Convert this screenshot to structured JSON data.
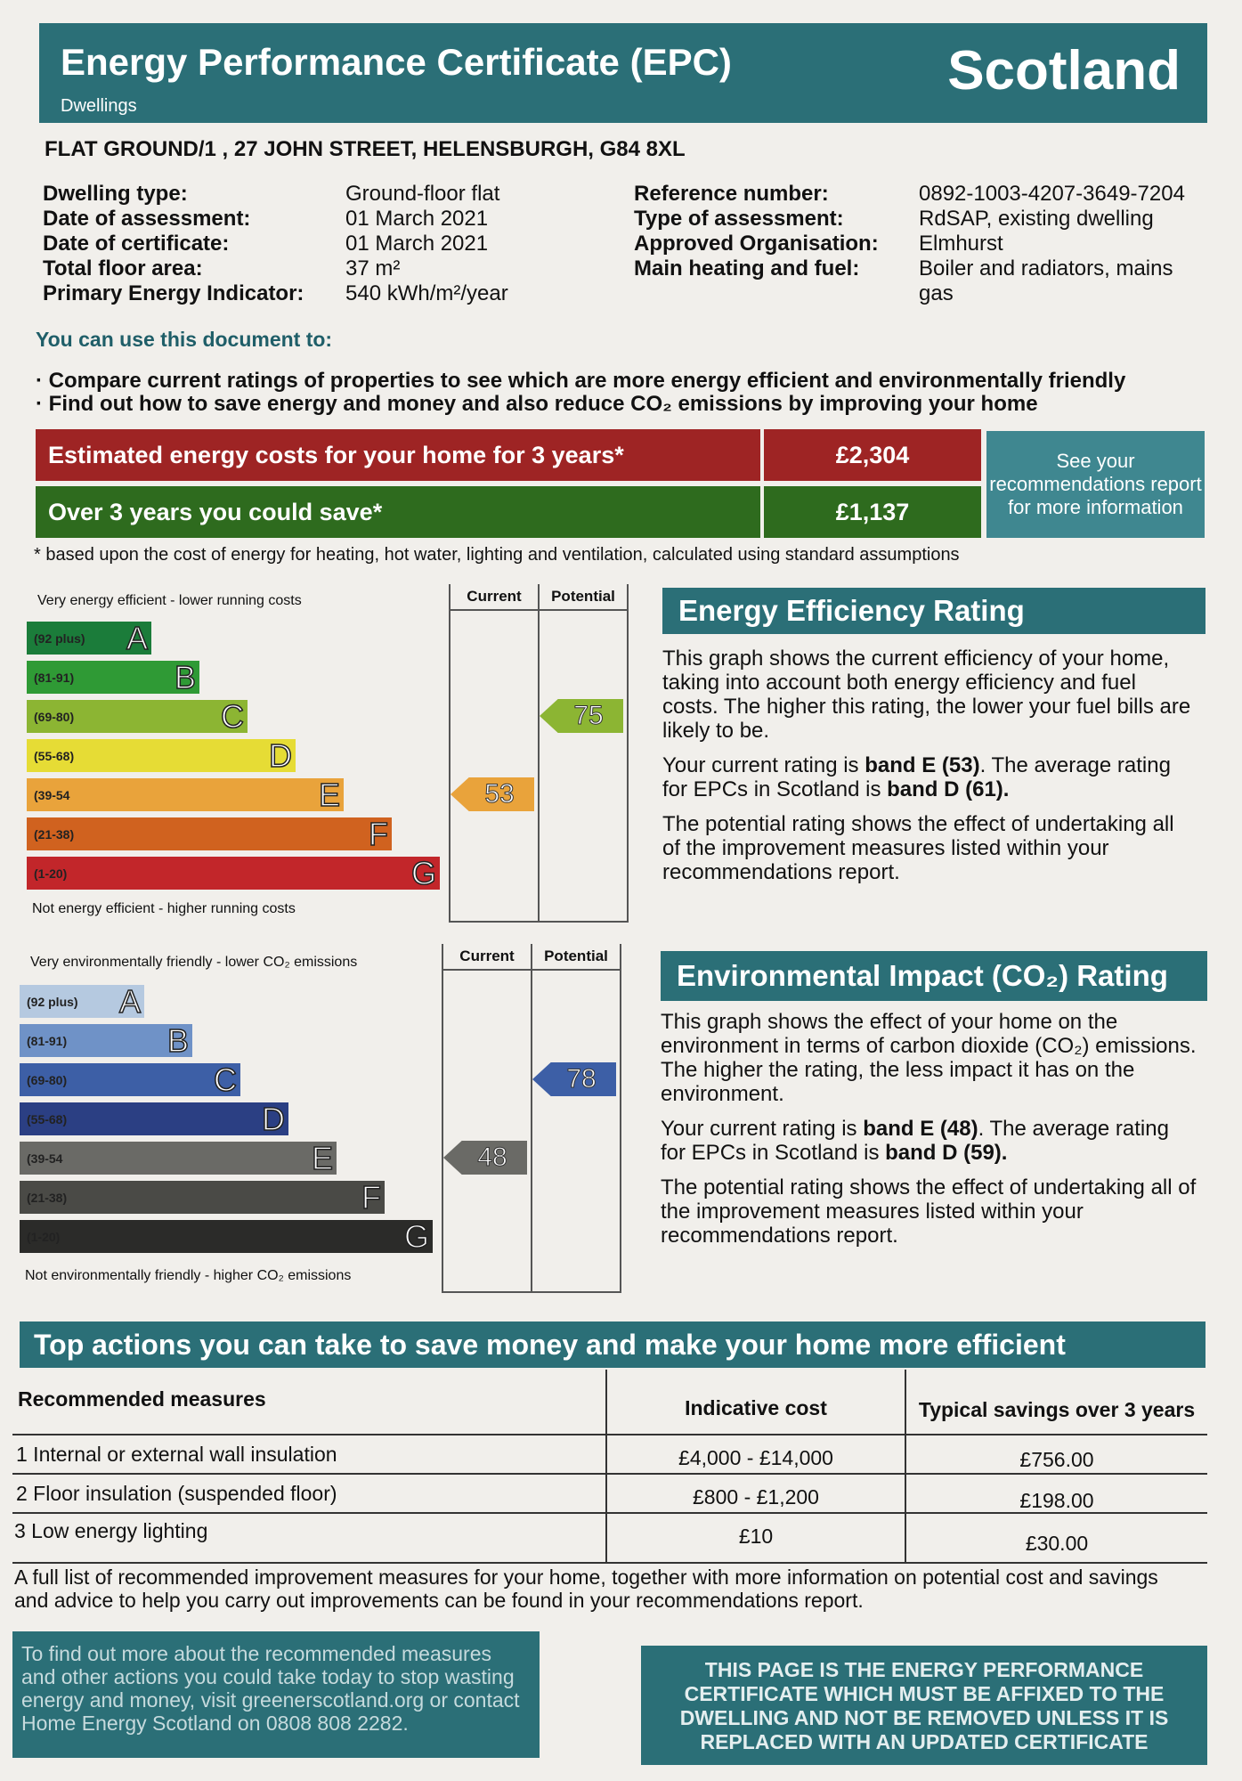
{
  "header": {
    "title": "Energy Performance Certificate (EPC)",
    "subtitle": "Dwellings",
    "country": "Scotland"
  },
  "address": "FLAT GROUND/1 , 27 JOHN STREET, HELENSBURGH, G84 8XL",
  "details_left": [
    {
      "label": "Dwelling type:",
      "value": "Ground-floor flat"
    },
    {
      "label": "Date of assessment:",
      "value": "01 March 2021"
    },
    {
      "label": "Date of certificate:",
      "value": "01 March 2021"
    },
    {
      "label": "Total floor area:",
      "value": "37 m²"
    },
    {
      "label": "Primary Energy Indicator:",
      "value": "540 kWh/m²/year"
    }
  ],
  "details_right": [
    {
      "label": "Reference number:",
      "value": "0892-1003-4207-3649-7204"
    },
    {
      "label": "Type of assessment:",
      "value": "RdSAP, existing dwelling"
    },
    {
      "label": "Approved Organisation:",
      "value": "Elmhurst"
    },
    {
      "label": "Main heating and fuel:",
      "value": "Boiler and radiators, mains",
      "value2": "gas"
    }
  ],
  "use_heading": "You can use this document to:",
  "bullets": [
    "Compare current ratings of properties to see which are more energy efficient and environmentally friendly",
    "Find out how to save energy and money and also reduce CO₂ emissions by improving your home"
  ],
  "costs": {
    "estimated_label": "Estimated energy costs for your home for 3 years*",
    "estimated_value": "£2,304",
    "save_label": "Over 3 years you could save*",
    "save_value": "£1,137",
    "see_box": "See your recommendations report for more information",
    "footnote": "* based upon the cost of energy for heating, hot water, lighting and ventilation, calculated using standard assumptions",
    "colors": {
      "red": "#9e2424",
      "green": "#2e6b1e",
      "teal": "#3f8790"
    }
  },
  "energy_chart": {
    "top_label": "Very energy efficient - lower running costs",
    "bottom_label": "Not energy efficient - higher running costs",
    "col_current": "Current",
    "col_potential": "Potential",
    "bands": [
      {
        "range": "(92 plus)",
        "letter": "A",
        "color": "#1b7c3a"
      },
      {
        "range": "(81-91)",
        "letter": "B",
        "color": "#2f9a35"
      },
      {
        "range": "(69-80)",
        "letter": "C",
        "color": "#8cb533"
      },
      {
        "range": "(55-68)",
        "letter": "D",
        "color": "#e6dc35"
      },
      {
        "range": "(39-54",
        "letter": "E",
        "color": "#e9a33b"
      },
      {
        "range": "(21-38)",
        "letter": "F",
        "color": "#d0621f"
      },
      {
        "range": "(1-20)",
        "letter": "G",
        "color": "#c2262a"
      }
    ],
    "current": "53",
    "potential": "75",
    "current_color": "#e9a33b",
    "potential_color": "#8cb533"
  },
  "env_chart": {
    "top_label": "Very environmentally friendly - lower CO₂ emissions",
    "bottom_label": "Not environmentally friendly - higher CO₂ emissions",
    "col_current": "Current",
    "col_potential": "Potential",
    "bands": [
      {
        "range": "(92 plus)",
        "letter": "A",
        "color": "#b5c9e0"
      },
      {
        "range": "(81-91)",
        "letter": "B",
        "color": "#6f92c7"
      },
      {
        "range": "(69-80)",
        "letter": "C",
        "color": "#3d5fa6"
      },
      {
        "range": "(55-68)",
        "letter": "D",
        "color": "#2b3f83"
      },
      {
        "range": "(39-54",
        "letter": "E",
        "color": "#6a6a66"
      },
      {
        "range": "(21-38)",
        "letter": "F",
        "color": "#4a4a46"
      },
      {
        "range": "(1-20)",
        "letter": "G",
        "color": "#2b2b29"
      }
    ],
    "current": "48",
    "potential": "78",
    "current_color": "#6a6a66",
    "potential_color": "#3d5fa6"
  },
  "ee_section": {
    "title": "Energy Efficiency Rating",
    "p1": "This graph shows the current efficiency of your home, taking into account both energy efficiency and fuel costs. The higher this rating, the lower your fuel bills are likely to be.",
    "p2_a": "Your current rating is ",
    "p2_b": "band E (53)",
    "p2_c": ". The average rating for EPCs in Scotland is ",
    "p2_d": "band D (61).",
    "p3": "The potential rating shows the effect of undertaking all of the improvement measures listed within your recommendations report."
  },
  "ei_section": {
    "title": "Environmental Impact (CO₂) Rating",
    "p1": "This graph shows the effect of your home on the environment in terms of carbon dioxide (CO₂) emissions. The higher the rating, the less impact it has on the environment.",
    "p2_a": "Your current rating is ",
    "p2_b": "band E (48)",
    "p2_c": ". The average rating for EPCs in Scotland is ",
    "p2_d": "band D (59).",
    "p3": "The potential rating shows the effect of undertaking all of the improvement measures listed within your recommendations report."
  },
  "actions": {
    "title": "Top actions you can take to save money and make your home more efficient",
    "col1": "Recommended measures",
    "col2": "Indicative cost",
    "col3": "Typical savings over 3 years",
    "rows": [
      {
        "measure": "1 Internal or external wall insulation",
        "cost": "£4,000 - £14,000",
        "savings": "£756.00"
      },
      {
        "measure": "2 Floor insulation (suspended floor)",
        "cost": "£800 - £1,200",
        "savings": "£198.00"
      },
      {
        "measure": "3 Low energy lighting",
        "cost": "£10",
        "savings": "£30.00"
      }
    ],
    "full_list": "A full list of recommended improvement measures for your home, together with more information on potential cost and savings and advice to help you carry out improvements can be found in your recommendations report."
  },
  "footer": {
    "left": "To find out more about the recommended measures and other actions you could take today to stop wasting energy and money, visit greenerscotland.org or contact Home Energy Scotland on 0808 808 2282.",
    "right": "THIS PAGE IS THE ENERGY PERFORMANCE CERTIFICATE WHICH MUST BE AFFIXED TO THE DWELLING AND NOT BE REMOVED UNLESS IT IS REPLACED WITH AN UPDATED CERTIFICATE"
  }
}
